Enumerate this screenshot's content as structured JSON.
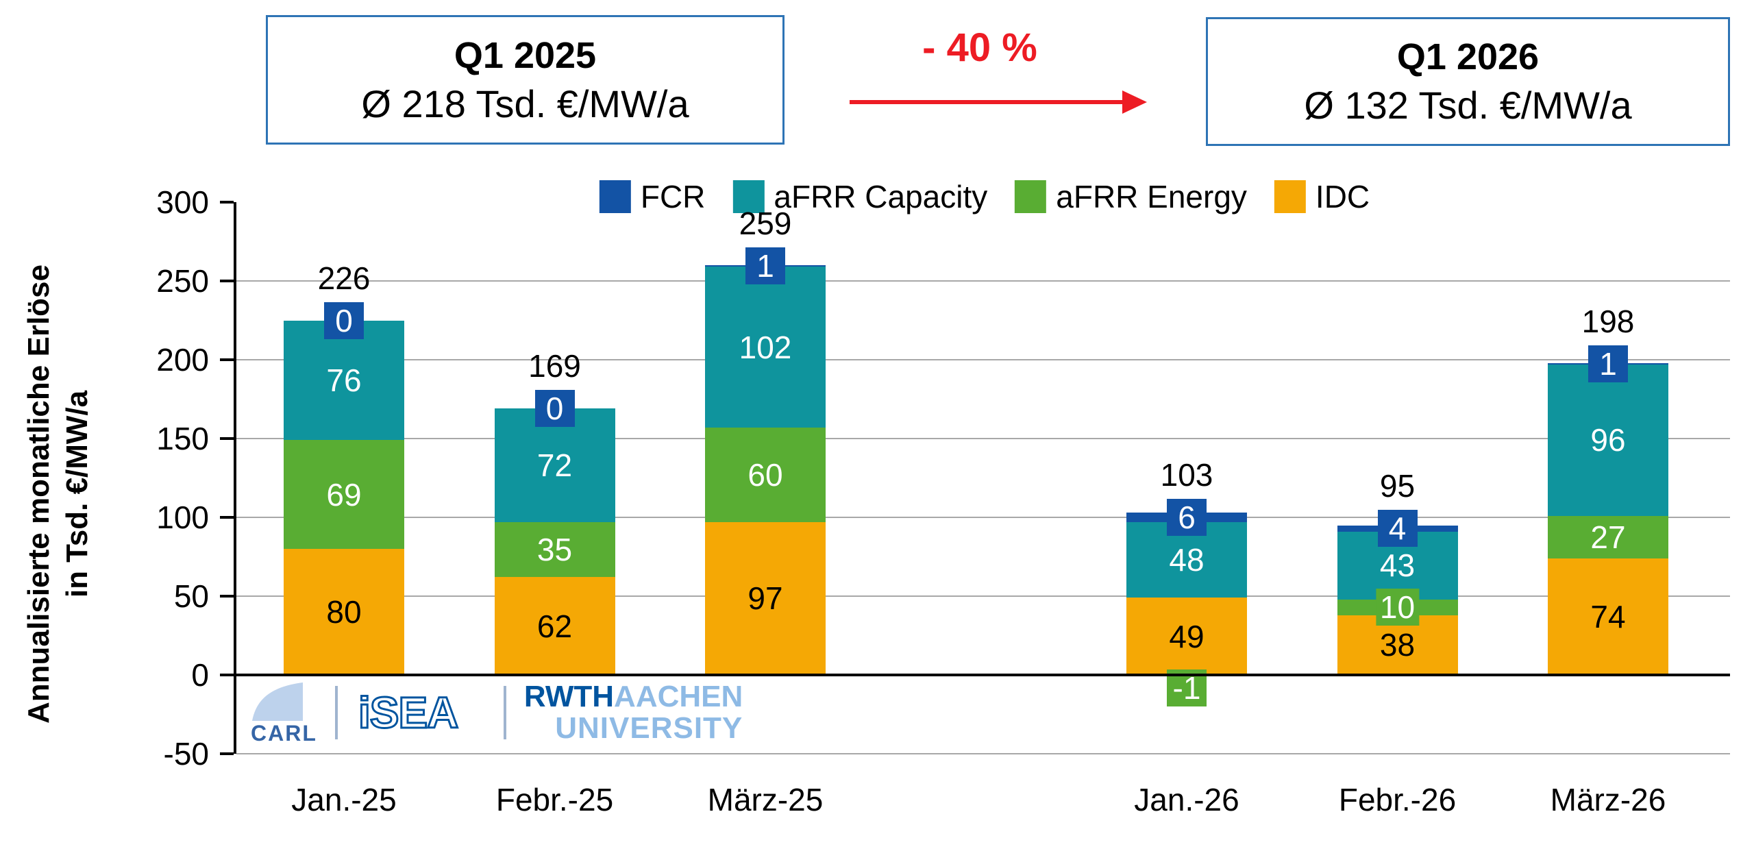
{
  "header": {
    "box_left": {
      "title": "Q1 2025",
      "value": "Ø 218 Tsd. €/MW/a"
    },
    "arrow_label": "- 40 %",
    "box_right": {
      "title": "Q1 2026",
      "value": "Ø 132 Tsd. €/MW/a"
    }
  },
  "colors": {
    "fcr_blue": "#1353A5",
    "afrr_capacity_teal": "#0F949D",
    "afrr_energy_green": "#59AD33",
    "idc_orange": "#F5A805",
    "arrow_red": "#ED1C24",
    "box_border_blue": "#2E74B5",
    "grid_gray": "#A8A8A8",
    "rwth_dark_blue": "#00549F",
    "rwth_light_blue": "#8EBAE5",
    "carl_fill": "#BDD2EC",
    "carl_text_blue": "#3565A6",
    "divider_blue_gray": "#9FB4CF"
  },
  "chart_data": {
    "type": "bar",
    "stacked": true,
    "title": "",
    "categories": [
      "Jan.-25",
      "Febr.-25",
      "März-25",
      "Jan.-26",
      "Febr.-26",
      "März-26"
    ],
    "series": [
      {
        "name": "FCR",
        "color": "#1353A5",
        "labels_badged": true,
        "values": [
          0,
          0,
          1,
          6,
          4,
          1
        ]
      },
      {
        "name": "aFRR Capacity",
        "color": "#0F949D",
        "labels_badged": false,
        "values": [
          76,
          72,
          102,
          48,
          43,
          96
        ]
      },
      {
        "name": "aFRR Energy",
        "color": "#59AD33",
        "labels_badged": false,
        "values": [
          69,
          35,
          60,
          -1,
          10,
          27
        ]
      },
      {
        "name": "IDC",
        "color": "#F5A805",
        "labels_badged": false,
        "values": [
          80,
          62,
          97,
          49,
          38,
          74
        ]
      }
    ],
    "totals": [
      "226",
      "169",
      "259",
      "103",
      "95",
      "198"
    ],
    "ylabel": [
      "Annualisierte monatliche Erlöse",
      "in Tsd. €/MW/a"
    ],
    "yticks": [
      300,
      250,
      200,
      150,
      100,
      50,
      0,
      -50
    ],
    "gridlines_at": [
      250,
      200,
      150,
      100,
      50,
      -50
    ],
    "ylim": [
      -50,
      300
    ],
    "legend_position": "top",
    "grid": "horizontal"
  },
  "logos": {
    "carl": "CARL",
    "isea": "iSEA",
    "rwth_bold": "RWTH",
    "rwth_light": "AACHEN",
    "rwth_line2": "UNIVERSITY"
  }
}
